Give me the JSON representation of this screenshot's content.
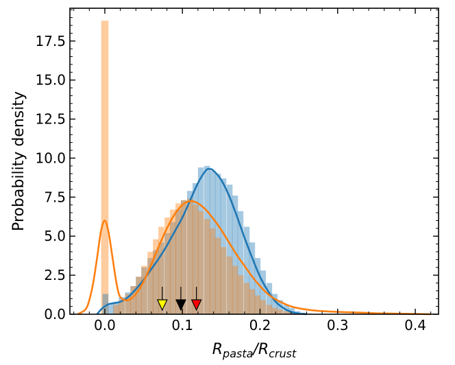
{
  "chart_data": {
    "type": "histogram",
    "xlabel_main": "R",
    "xlabel_sub1": "pasta",
    "xlabel_sep": "/R",
    "xlabel_sub2": "crust",
    "ylabel": "Probability density",
    "xlim": [
      -0.045,
      0.43
    ],
    "ylim": [
      0,
      19.6
    ],
    "xticks": [
      0.0,
      0.1,
      0.2,
      0.3,
      0.4
    ],
    "xtick_labels": [
      "0.0",
      "0.1",
      "0.2",
      "0.3",
      "0.4"
    ],
    "yticks": [
      0.0,
      2.5,
      5.0,
      7.5,
      10.0,
      12.5,
      15.0,
      17.5
    ],
    "ytick_labels": [
      "0.0",
      "2.5",
      "5.0",
      "7.5",
      "10.0",
      "12.5",
      "15.0",
      "17.5"
    ],
    "colors": {
      "blue_hist": "#1f77b4",
      "orange_hist": "#ff7f0e",
      "blue_line": "#1f77b4",
      "orange_line": "#ff7f0e"
    },
    "bin_width": 0.0073,
    "orange_spike": {
      "x": 0.0,
      "width": 0.0095,
      "height": 18.8
    },
    "blue_histogram": {
      "bin_starts": [
        -0.003,
        0.004,
        0.011,
        0.018,
        0.026,
        0.033,
        0.04,
        0.047,
        0.055,
        0.062,
        0.069,
        0.077,
        0.084,
        0.091,
        0.098,
        0.106,
        0.113,
        0.12,
        0.128,
        0.135,
        0.142,
        0.149,
        0.157,
        0.164,
        0.171,
        0.179,
        0.186,
        0.193,
        0.2,
        0.208,
        0.215,
        0.222,
        0.23,
        0.237,
        0.244,
        0.251,
        0.259
      ],
      "heights": [
        1.3,
        0.7,
        0.8,
        1.1,
        1.4,
        1.8,
        2.4,
        3.0,
        3.6,
        4.1,
        4.6,
        5.2,
        5.9,
        6.7,
        7.3,
        7.9,
        8.4,
        9.4,
        9.5,
        9.2,
        9.0,
        8.7,
        8.3,
        7.6,
        6.6,
        5.6,
        4.6,
        3.6,
        2.8,
        2.0,
        1.3,
        0.9,
        0.6,
        0.4,
        0.2,
        0.1,
        0.05
      ]
    },
    "orange_histogram": {
      "bin_starts": [
        0.011,
        0.018,
        0.026,
        0.033,
        0.04,
        0.047,
        0.055,
        0.062,
        0.069,
        0.077,
        0.084,
        0.091,
        0.098,
        0.106,
        0.113,
        0.12,
        0.128,
        0.135,
        0.142,
        0.149,
        0.157,
        0.164,
        0.171,
        0.179,
        0.186,
        0.193,
        0.2,
        0.208,
        0.215,
        0.222,
        0.23,
        0.237
      ],
      "heights": [
        0.6,
        0.9,
        1.3,
        1.8,
        2.4,
        3.1,
        4.0,
        4.8,
        5.6,
        6.2,
        6.7,
        7.1,
        7.3,
        7.4,
        7.0,
        6.6,
        6.1,
        5.5,
        4.9,
        4.3,
        3.7,
        3.1,
        2.5,
        2.0,
        1.6,
        1.2,
        0.9,
        0.6,
        0.4,
        0.3,
        0.2,
        0.1
      ]
    },
    "blue_kde": {
      "x": [
        -0.01,
        -0.005,
        0.0,
        0.005,
        0.01,
        0.02,
        0.03,
        0.04,
        0.05,
        0.06,
        0.07,
        0.08,
        0.09,
        0.1,
        0.11,
        0.12,
        0.13,
        0.135,
        0.14,
        0.15,
        0.16,
        0.17,
        0.18,
        0.19,
        0.2,
        0.21,
        0.22,
        0.23,
        0.24,
        0.25,
        0.26
      ],
      "y": [
        0.0,
        0.3,
        0.5,
        0.65,
        0.7,
        0.8,
        1.1,
        1.6,
        2.2,
        2.9,
        3.6,
        4.4,
        5.3,
        6.2,
        7.3,
        8.4,
        9.2,
        9.3,
        9.2,
        8.6,
        7.6,
        6.3,
        4.9,
        3.6,
        2.4,
        1.5,
        0.8,
        0.4,
        0.15,
        0.05,
        0.0
      ]
    },
    "orange_kde": {
      "x": [
        -0.035,
        -0.025,
        -0.02,
        -0.015,
        -0.01,
        -0.005,
        0.0,
        0.005,
        0.01,
        0.015,
        0.02,
        0.03,
        0.04,
        0.05,
        0.06,
        0.07,
        0.08,
        0.09,
        0.1,
        0.11,
        0.12,
        0.13,
        0.14,
        0.15,
        0.16,
        0.17,
        0.18,
        0.19,
        0.2,
        0.21,
        0.22,
        0.24,
        0.26,
        0.28,
        0.3,
        0.33,
        0.36,
        0.4,
        0.42
      ],
      "y": [
        0.0,
        0.3,
        0.9,
        2.0,
        3.6,
        5.3,
        6.0,
        5.2,
        3.6,
        2.0,
        1.1,
        0.9,
        1.3,
        2.1,
        3.2,
        4.4,
        5.5,
        6.4,
        7.0,
        7.25,
        7.1,
        6.7,
        6.1,
        5.4,
        4.6,
        3.8,
        3.1,
        2.4,
        1.8,
        1.3,
        0.95,
        0.5,
        0.3,
        0.2,
        0.15,
        0.1,
        0.05,
        0.02,
        0.0
      ]
    },
    "markers": [
      {
        "name": "yellow-marker",
        "x": 0.074,
        "color": "#ffff00"
      },
      {
        "name": "black-marker",
        "x": 0.098,
        "color": "#000000"
      },
      {
        "name": "red-marker",
        "x": 0.118,
        "color": "#ff0000"
      }
    ]
  }
}
